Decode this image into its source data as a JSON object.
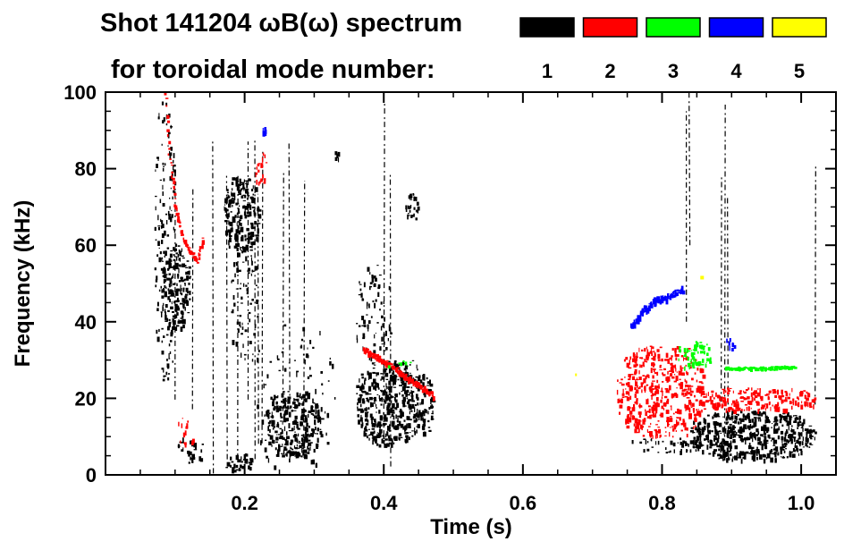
{
  "chart_data": {
    "type": "heatmap",
    "title_line1_prefix": "Shot 141204 ",
    "title_omega": "ω",
    "title_B": "B(",
    "title_close": ") spectrum",
    "title_line2": "for toroidal mode number:",
    "xlabel": "Time (s)",
    "ylabel": "Frequency (kHz)",
    "xlim": [
      0.0,
      1.05
    ],
    "ylim": [
      0,
      100
    ],
    "x_ticks": [
      0.2,
      0.4,
      0.6,
      0.8,
      1.0
    ],
    "x_tick_labels": [
      "0.2",
      "0.4",
      "0.6",
      "0.8",
      "1.0"
    ],
    "y_ticks": [
      0,
      20,
      40,
      60,
      80,
      100
    ],
    "y_tick_labels": [
      "0",
      "20",
      "40",
      "60",
      "80",
      "100"
    ],
    "legend": [
      {
        "label": "1",
        "color": "#000000"
      },
      {
        "label": "2",
        "color": "#ff0000"
      },
      {
        "label": "3",
        "color": "#00ff00"
      },
      {
        "label": "4",
        "color": "#0000ff"
      },
      {
        "label": "5",
        "color": "#ffff00"
      }
    ],
    "features": [
      {
        "mode": 1,
        "name": "early-broadband",
        "t": [
          0.07,
          0.1
        ],
        "f": [
          25,
          100
        ]
      },
      {
        "mode": 1,
        "name": "early-core",
        "t": [
          0.08,
          0.12
        ],
        "f": [
          35,
          60
        ]
      },
      {
        "mode": 1,
        "name": "burst-0.2",
        "t": [
          0.17,
          0.22
        ],
        "f": [
          55,
          78
        ]
      },
      {
        "mode": 1,
        "name": "low-0.25",
        "t": [
          0.23,
          0.31
        ],
        "f": [
          5,
          22
        ]
      },
      {
        "mode": 1,
        "name": "low-0.4",
        "t": [
          0.36,
          0.47
        ],
        "f": [
          8,
          30
        ]
      },
      {
        "mode": 1,
        "name": "chirp-0.44",
        "t": [
          0.43,
          0.45
        ],
        "f": [
          66,
          74
        ]
      },
      {
        "mode": 1,
        "name": "low-0.9",
        "t": [
          0.83,
          1.02
        ],
        "f": [
          5,
          18
        ]
      },
      {
        "mode": 1,
        "name": "spike-0.89",
        "t": [
          0.885,
          0.895
        ],
        "f": [
          30,
          100
        ]
      },
      {
        "mode": 2,
        "name": "chirp-0.1",
        "t": [
          0.08,
          0.12
        ],
        "f": [
          60,
          100
        ]
      },
      {
        "mode": 2,
        "name": "falling-0.4",
        "t": [
          0.37,
          0.47
        ],
        "f": [
          22,
          35
        ]
      },
      {
        "mode": 2,
        "name": "band-0.8",
        "t": [
          0.74,
          0.86
        ],
        "f": [
          10,
          35
        ]
      },
      {
        "mode": 2,
        "name": "band-0.95",
        "t": [
          0.86,
          1.02
        ],
        "f": [
          17,
          24
        ]
      },
      {
        "mode": 3,
        "name": "band-0.84",
        "t": [
          0.82,
          0.88
        ],
        "f": [
          28,
          35
        ]
      },
      {
        "mode": 3,
        "name": "band-0.93",
        "t": [
          0.89,
          1.0
        ],
        "f": [
          27,
          29
        ]
      },
      {
        "mode": 4,
        "name": "rising-0.8",
        "t": [
          0.75,
          0.83
        ],
        "f": [
          38,
          49
        ]
      },
      {
        "mode": 5,
        "name": "dot-0.86",
        "t": [
          0.855,
          0.86
        ],
        "f": [
          51,
          52
        ]
      }
    ]
  }
}
